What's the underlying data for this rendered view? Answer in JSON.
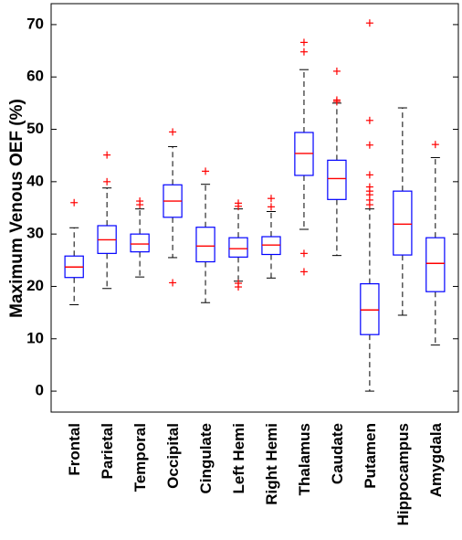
{
  "chart_data": {
    "type": "boxplot",
    "title": "",
    "xlabel": "",
    "ylabel": "Maximum Venous OEF (%)",
    "ylim": [
      -4,
      74
    ],
    "yticks": [
      0,
      10,
      20,
      30,
      40,
      50,
      60,
      70
    ],
    "grid": false,
    "colors": {
      "box": "#0000ff",
      "median": "#ff0000",
      "outlier": "#ff0000",
      "whisker": "#000000",
      "axis": "#000000"
    },
    "categories": [
      "Frontal",
      "Parietal",
      "Temporal",
      "Occipital",
      "Cingulate",
      "Left Hemi",
      "Right Hemi",
      "Thalamus",
      "Caudate",
      "Putamen",
      "Hippocampus",
      "Amygdala"
    ],
    "boxes": [
      {
        "min": 16.5,
        "q1": 21.7,
        "median": 23.7,
        "q3": 25.8,
        "max": 31.2,
        "outliers": [
          36.0
        ]
      },
      {
        "min": 19.6,
        "q1": 26.3,
        "median": 28.9,
        "q3": 31.6,
        "max": 38.8,
        "outliers": [
          40.0,
          45.1
        ]
      },
      {
        "min": 21.8,
        "q1": 26.6,
        "median": 28.1,
        "q3": 30.0,
        "max": 34.8,
        "outliers": [
          35.6,
          36.3
        ]
      },
      {
        "min": 25.5,
        "q1": 33.2,
        "median": 36.3,
        "q3": 39.4,
        "max": 46.7,
        "outliers": [
          20.7,
          49.5
        ]
      },
      {
        "min": 16.9,
        "q1": 24.7,
        "median": 27.7,
        "q3": 31.3,
        "max": 39.5,
        "outliers": [
          42.0
        ]
      },
      {
        "min": 21.0,
        "q1": 25.6,
        "median": 27.2,
        "q3": 29.3,
        "max": 34.8,
        "outliers": [
          19.9,
          20.6,
          35.3,
          35.9
        ]
      },
      {
        "min": 21.6,
        "q1": 26.1,
        "median": 27.9,
        "q3": 29.5,
        "max": 34.3,
        "outliers": [
          35.2,
          36.8
        ]
      },
      {
        "min": 30.9,
        "q1": 41.2,
        "median": 45.4,
        "q3": 49.4,
        "max": 61.4,
        "outliers": [
          22.8,
          26.3,
          64.8,
          66.6
        ]
      },
      {
        "min": 25.9,
        "q1": 36.6,
        "median": 40.6,
        "q3": 44.1,
        "max": 55.0,
        "outliers": [
          55.3,
          55.6,
          61.1
        ]
      },
      {
        "min": 0.0,
        "q1": 10.8,
        "median": 15.5,
        "q3": 20.5,
        "max": 34.8,
        "outliers": [
          35.6,
          36.5,
          37.5,
          38.2,
          39.0,
          41.3,
          47.0,
          51.7,
          70.3
        ]
      },
      {
        "min": 14.5,
        "q1": 26.0,
        "median": 31.9,
        "q3": 38.2,
        "max": 54.1,
        "outliers": []
      },
      {
        "min": 8.8,
        "q1": 19.0,
        "median": 24.4,
        "q3": 29.3,
        "max": 44.6,
        "outliers": [
          47.1
        ]
      }
    ]
  }
}
